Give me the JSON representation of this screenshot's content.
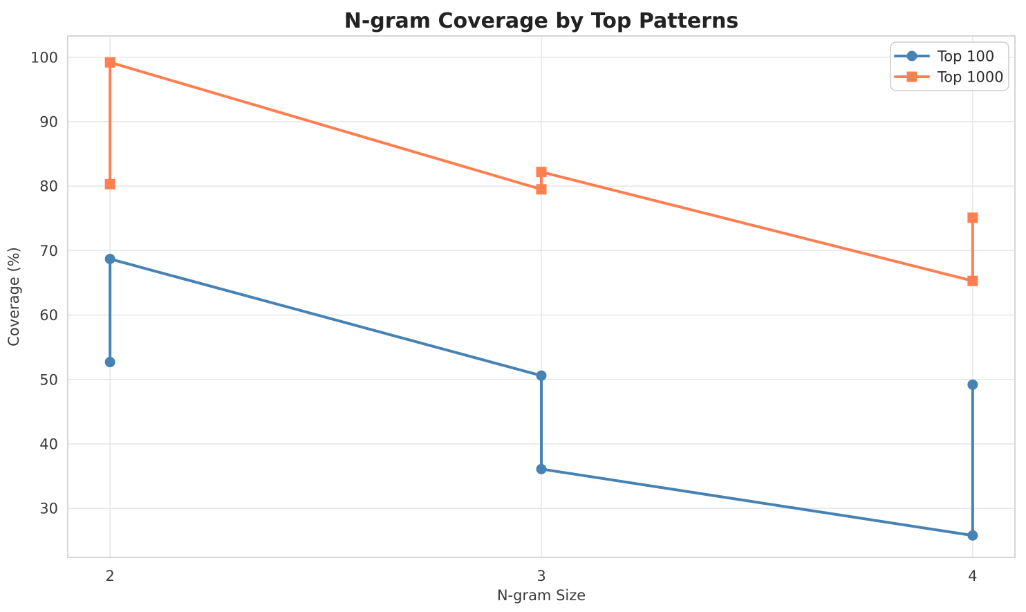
{
  "chart_data": {
    "type": "line",
    "title": "N-gram Coverage by Top Patterns",
    "xlabel": "N-gram Size",
    "ylabel": "Coverage (%)",
    "x_ticks": [
      2,
      3,
      4
    ],
    "y_ticks": [
      30,
      40,
      50,
      60,
      70,
      80,
      90,
      100
    ],
    "xlim": [
      1.902,
      4.098
    ],
    "ylim": [
      22.4,
      103.3
    ],
    "grid": true,
    "background": "#ffffff",
    "gridline_color": "#e7e7e7",
    "spine_color": "#d6d6d6",
    "legend_position": "upper right",
    "series": [
      {
        "name": "Top 100",
        "color": "#4682B4",
        "marker": "circle",
        "points": [
          {
            "x": 2,
            "y": 52.7
          },
          {
            "x": 2,
            "y": 68.7
          },
          {
            "x": 3,
            "y": 50.6
          },
          {
            "x": 3,
            "y": 36.1
          },
          {
            "x": 4,
            "y": 25.8
          },
          {
            "x": 4,
            "y": 49.2
          }
        ]
      },
      {
        "name": "Top 1000",
        "color": "#FF7F50",
        "marker": "square",
        "points": [
          {
            "x": 2,
            "y": 80.3
          },
          {
            "x": 2,
            "y": 99.2
          },
          {
            "x": 3,
            "y": 79.5
          },
          {
            "x": 3,
            "y": 82.2
          },
          {
            "x": 4,
            "y": 65.3
          },
          {
            "x": 4,
            "y": 75.1
          }
        ]
      }
    ]
  }
}
